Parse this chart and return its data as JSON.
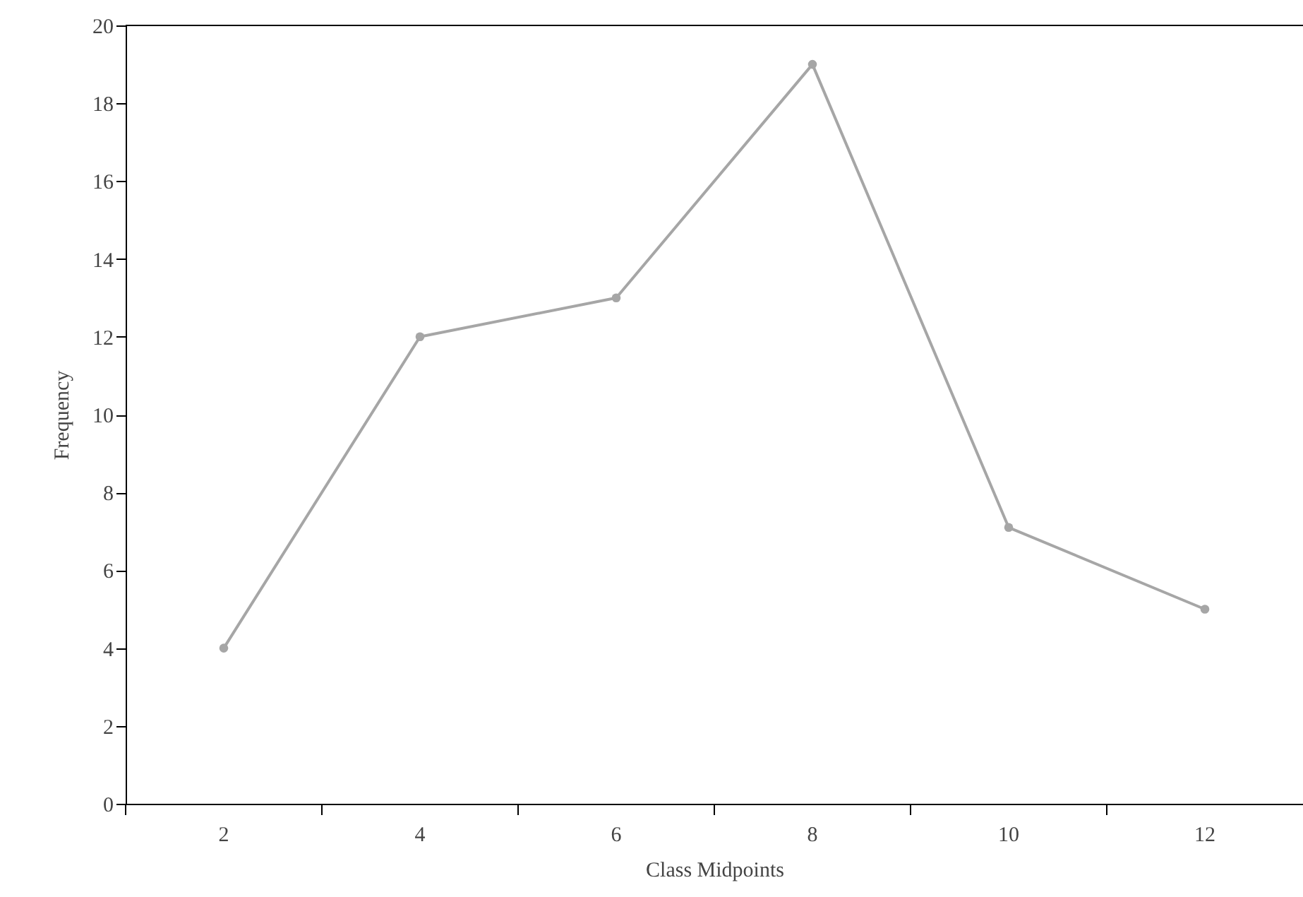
{
  "chart_data": {
    "type": "line",
    "xlabel": "Class Midpoints",
    "ylabel": "Frequency",
    "categories": [
      "2",
      "4",
      "6",
      "8",
      "10",
      "12"
    ],
    "series": [
      {
        "color": "#a6a6a6",
        "values": [
          4,
          12,
          13,
          19,
          7.1,
          5
        ]
      }
    ],
    "ylim": [
      0,
      20
    ],
    "yticks": [
      0,
      2,
      4,
      6,
      8,
      10,
      12,
      14,
      16,
      18,
      20
    ],
    "grid": false,
    "marker": "circle",
    "line_style": "solid"
  }
}
